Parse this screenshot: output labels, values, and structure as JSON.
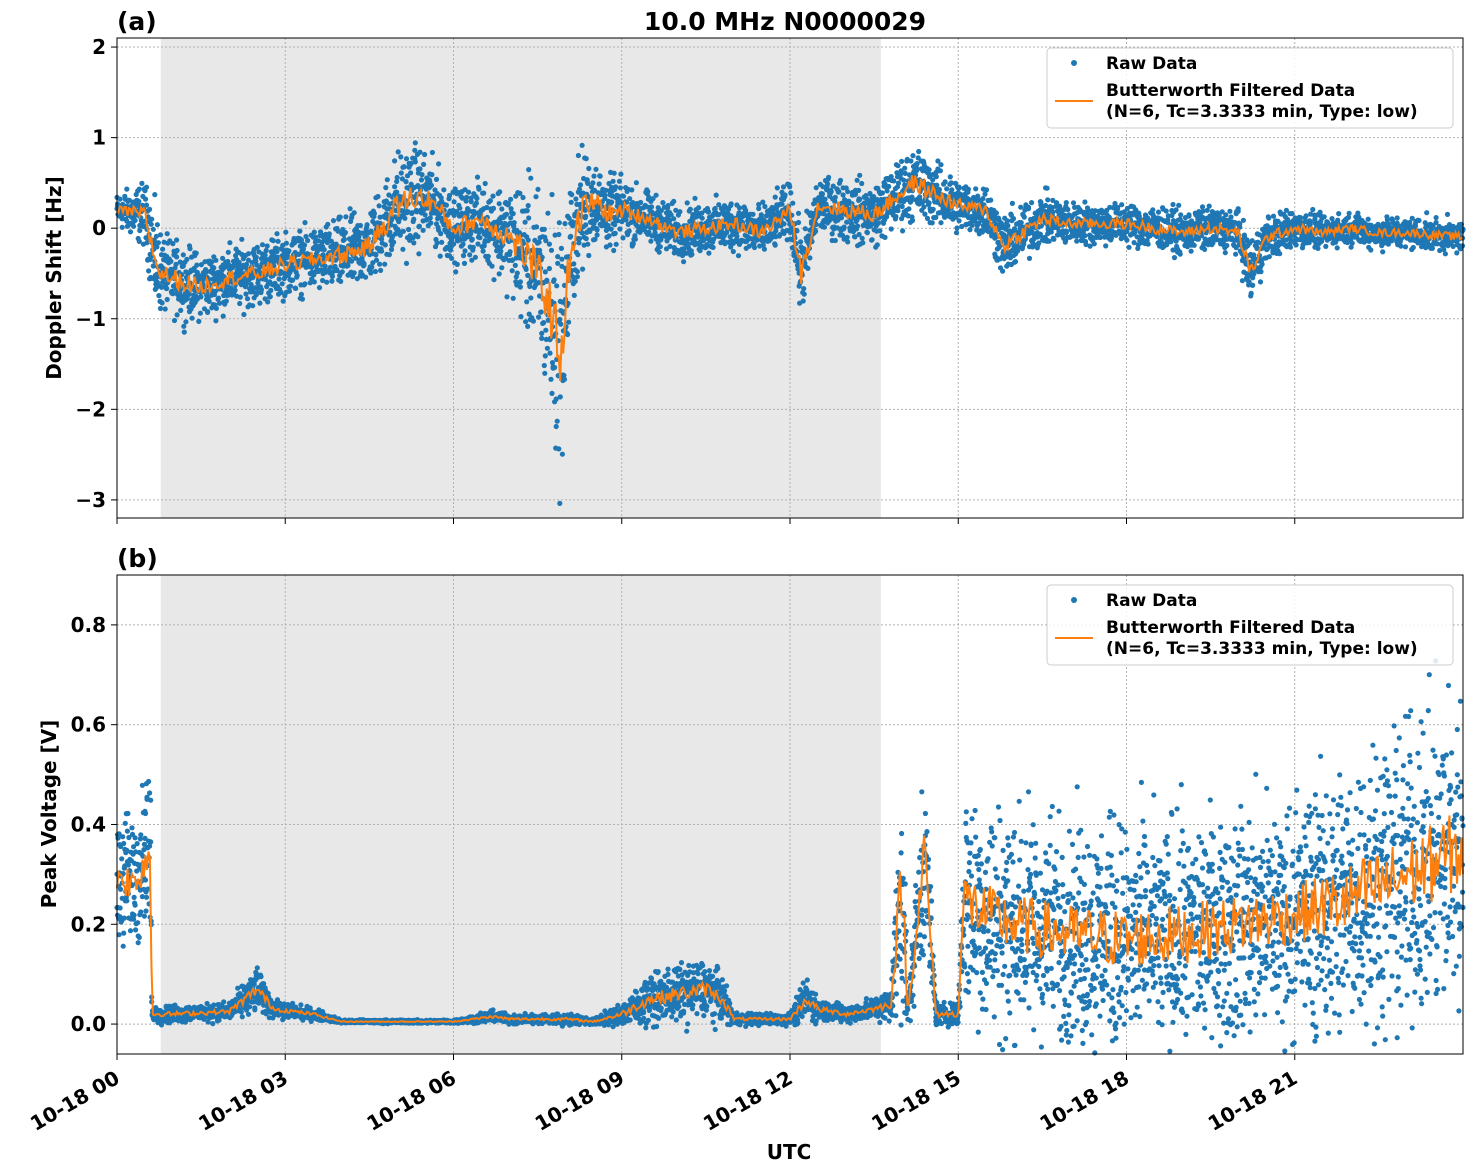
{
  "title": "10.0 MHz N0000029",
  "colors": {
    "raw": "#1f77b4",
    "filtered": "#ff7f0e",
    "night_shade": "#e8e8e8",
    "grid": "#b0b0b0"
  },
  "x_axis": {
    "label": "UTC",
    "range_hours": [
      0,
      24
    ],
    "ticks": [
      {
        "hour": 0,
        "label": "10-18 00"
      },
      {
        "hour": 3,
        "label": "10-18 03"
      },
      {
        "hour": 6,
        "label": "10-18 06"
      },
      {
        "hour": 9,
        "label": "10-18 09"
      },
      {
        "hour": 12,
        "label": "10-18 12"
      },
      {
        "hour": 15,
        "label": "10-18 15"
      },
      {
        "hour": 18,
        "label": "10-18 18"
      },
      {
        "hour": 21,
        "label": "10-18 21"
      }
    ]
  },
  "shaded_interval_hours": [
    0.78,
    13.62
  ],
  "legend": {
    "raw_label": "Raw Data",
    "filtered_line1": "Butterworth Filtered Data",
    "filtered_line2": "(N=6, Tc=3.3333 min, Type: low)"
  },
  "chart_data": [
    {
      "type": "scatter",
      "panel_label": "(a)",
      "ylabel": "Doppler Shift [Hz]",
      "ylim": [
        -3.2,
        2.1
      ],
      "yticks": [
        {
          "value": 2,
          "label": "2"
        },
        {
          "value": 1,
          "label": "1"
        },
        {
          "value": 0,
          "label": "0"
        },
        {
          "value": -1,
          "label": "−1"
        },
        {
          "value": -2,
          "label": "−2"
        },
        {
          "value": -3,
          "label": "−3"
        }
      ],
      "grid": true,
      "legend_position": "top-right",
      "series": [
        {
          "name": "Raw Data",
          "kind": "scatter",
          "x_hours": [
            0,
            0.5,
            0.7,
            0.8,
            1.2,
            1.5,
            2.0,
            2.5,
            3.0,
            3.5,
            4.0,
            4.5,
            5.0,
            5.3,
            5.6,
            6.0,
            6.5,
            7.0,
            7.3,
            7.5,
            7.7,
            7.9,
            8.1,
            8.3,
            8.5,
            8.8,
            9.0,
            9.5,
            10.0,
            10.5,
            11.0,
            11.5,
            12.0,
            12.2,
            12.5,
            13.0,
            13.5,
            13.8,
            14.2,
            14.5,
            15.0,
            15.5,
            15.8,
            16.5,
            17.0,
            17.5,
            18.0,
            18.5,
            19.0,
            19.5,
            20.0,
            20.2,
            20.5,
            21.0,
            21.5,
            22.0,
            22.5,
            23.0,
            24.0
          ],
          "center_hz": [
            0.2,
            0.15,
            -0.4,
            -0.5,
            -0.6,
            -0.65,
            -0.55,
            -0.5,
            -0.4,
            -0.35,
            -0.3,
            -0.2,
            0.25,
            0.35,
            0.3,
            0.0,
            0.1,
            -0.1,
            -0.3,
            -0.5,
            -0.8,
            -1.4,
            -0.2,
            0.2,
            0.3,
            0.15,
            0.2,
            0.1,
            -0.05,
            0.0,
            0.05,
            -0.05,
            0.2,
            -0.5,
            0.25,
            0.2,
            0.15,
            0.3,
            0.5,
            0.4,
            0.25,
            0.2,
            -0.2,
            0.1,
            0.05,
            0.05,
            0.05,
            0.0,
            -0.05,
            0.0,
            -0.05,
            -0.5,
            -0.1,
            0.0,
            -0.05,
            0.0,
            -0.05,
            -0.05,
            -0.1
          ],
          "spread_hz": [
            0.15,
            0.3,
            0.5,
            0.35,
            0.35,
            0.3,
            0.3,
            0.3,
            0.3,
            0.3,
            0.35,
            0.35,
            0.5,
            0.5,
            0.4,
            0.35,
            0.35,
            0.5,
            0.7,
            0.8,
            1.0,
            1.4,
            0.6,
            0.6,
            0.4,
            0.35,
            0.3,
            0.25,
            0.25,
            0.25,
            0.25,
            0.25,
            0.25,
            0.4,
            0.25,
            0.3,
            0.3,
            0.3,
            0.35,
            0.3,
            0.25,
            0.25,
            0.3,
            0.25,
            0.2,
            0.2,
            0.2,
            0.2,
            0.2,
            0.2,
            0.2,
            0.35,
            0.2,
            0.2,
            0.15,
            0.15,
            0.15,
            0.15,
            0.15
          ]
        },
        {
          "name": "Butterworth Filtered Data (N=6, Tc=3.3333 min, Type: low)",
          "kind": "line",
          "x_hours": [
            0,
            0.5,
            0.7,
            0.8,
            1.2,
            1.5,
            2.0,
            2.5,
            3.0,
            3.5,
            4.0,
            4.5,
            5.0,
            5.3,
            5.6,
            6.0,
            6.5,
            7.0,
            7.3,
            7.5,
            7.7,
            7.9,
            8.1,
            8.3,
            8.5,
            8.8,
            9.0,
            9.5,
            10.0,
            10.5,
            11.0,
            11.5,
            12.0,
            12.2,
            12.5,
            13.0,
            13.5,
            13.8,
            14.2,
            14.5,
            15.0,
            15.5,
            15.8,
            16.5,
            17.0,
            17.5,
            18.0,
            18.5,
            19.0,
            19.5,
            20.0,
            20.2,
            20.5,
            21.0,
            21.5,
            22.0,
            22.5,
            23.0,
            24.0
          ],
          "y_hz": [
            0.2,
            0.15,
            -0.4,
            -0.5,
            -0.6,
            -0.65,
            -0.55,
            -0.5,
            -0.4,
            -0.35,
            -0.3,
            -0.2,
            0.25,
            0.35,
            0.3,
            0.0,
            0.1,
            -0.1,
            -0.3,
            -0.5,
            -0.8,
            -1.4,
            -0.2,
            0.2,
            0.3,
            0.15,
            0.2,
            0.1,
            -0.05,
            0.0,
            0.05,
            -0.05,
            0.2,
            -0.5,
            0.25,
            0.2,
            0.15,
            0.3,
            0.5,
            0.4,
            0.25,
            0.2,
            -0.2,
            0.1,
            0.05,
            0.05,
            0.05,
            0.0,
            -0.05,
            0.0,
            -0.05,
            -0.5,
            -0.1,
            0.0,
            -0.05,
            0.0,
            -0.05,
            -0.05,
            -0.1
          ]
        }
      ]
    },
    {
      "type": "scatter",
      "panel_label": "(b)",
      "ylabel": "Peak Voltage [V]",
      "ylim": [
        -0.06,
        0.9
      ],
      "yticks": [
        {
          "value": 0.8,
          "label": "0.8"
        },
        {
          "value": 0.6,
          "label": "0.6"
        },
        {
          "value": 0.4,
          "label": "0.4"
        },
        {
          "value": 0.2,
          "label": "0.2"
        },
        {
          "value": 0.0,
          "label": "0.0"
        }
      ],
      "grid": true,
      "legend_position": "top-right",
      "series": [
        {
          "name": "Raw Data",
          "kind": "scatter",
          "x_hours": [
            0,
            0.3,
            0.6,
            0.62,
            0.7,
            1.0,
            2.0,
            2.5,
            2.8,
            3.5,
            4.0,
            5.0,
            6.0,
            6.7,
            7.0,
            8.0,
            8.5,
            9.0,
            9.5,
            10.0,
            10.5,
            10.8,
            11.0,
            12.0,
            12.3,
            12.5,
            13.0,
            13.5,
            13.8,
            14.0,
            14.1,
            14.4,
            14.6,
            15.0,
            15.1,
            15.5,
            16.0,
            17.0,
            18.0,
            19.0,
            20.0,
            21.0,
            22.0,
            23.0,
            24.0
          ],
          "center_v": [
            0.3,
            0.28,
            0.35,
            0.02,
            0.02,
            0.02,
            0.025,
            0.07,
            0.03,
            0.02,
            0.005,
            0.005,
            0.005,
            0.015,
            0.01,
            0.01,
            0.005,
            0.02,
            0.05,
            0.06,
            0.07,
            0.05,
            0.01,
            0.01,
            0.05,
            0.03,
            0.02,
            0.03,
            0.04,
            0.3,
            0.02,
            0.35,
            0.02,
            0.02,
            0.25,
            0.22,
            0.2,
            0.18,
            0.17,
            0.18,
            0.2,
            0.22,
            0.25,
            0.3,
            0.35
          ],
          "spread_v": [
            0.12,
            0.12,
            0.15,
            0.01,
            0.015,
            0.015,
            0.015,
            0.04,
            0.015,
            0.01,
            0.003,
            0.003,
            0.003,
            0.01,
            0.008,
            0.01,
            0.005,
            0.02,
            0.04,
            0.05,
            0.05,
            0.04,
            0.01,
            0.01,
            0.04,
            0.02,
            0.015,
            0.02,
            0.03,
            0.25,
            0.02,
            0.2,
            0.02,
            0.02,
            0.2,
            0.2,
            0.2,
            0.2,
            0.2,
            0.2,
            0.2,
            0.2,
            0.25,
            0.25,
            0.28
          ]
        },
        {
          "name": "Butterworth Filtered Data (N=6, Tc=3.3333 min, Type: low)",
          "kind": "line",
          "x_hours": [
            0,
            0.3,
            0.6,
            0.62,
            0.7,
            1.0,
            2.0,
            2.5,
            2.8,
            3.5,
            4.0,
            5.0,
            6.0,
            6.7,
            7.0,
            8.0,
            8.5,
            9.0,
            9.5,
            10.0,
            10.5,
            10.8,
            11.0,
            12.0,
            12.3,
            12.5,
            13.0,
            13.5,
            13.8,
            14.0,
            14.1,
            14.4,
            14.6,
            15.0,
            15.1,
            15.5,
            16.0,
            17.0,
            18.0,
            19.0,
            20.0,
            21.0,
            22.0,
            23.0,
            24.0
          ],
          "y_v": [
            0.3,
            0.28,
            0.35,
            0.02,
            0.02,
            0.02,
            0.025,
            0.07,
            0.03,
            0.02,
            0.005,
            0.005,
            0.005,
            0.015,
            0.01,
            0.01,
            0.005,
            0.02,
            0.05,
            0.06,
            0.07,
            0.05,
            0.01,
            0.01,
            0.05,
            0.03,
            0.02,
            0.03,
            0.04,
            0.3,
            0.02,
            0.35,
            0.02,
            0.02,
            0.25,
            0.22,
            0.2,
            0.18,
            0.17,
            0.18,
            0.2,
            0.22,
            0.25,
            0.3,
            0.35
          ]
        }
      ]
    }
  ]
}
